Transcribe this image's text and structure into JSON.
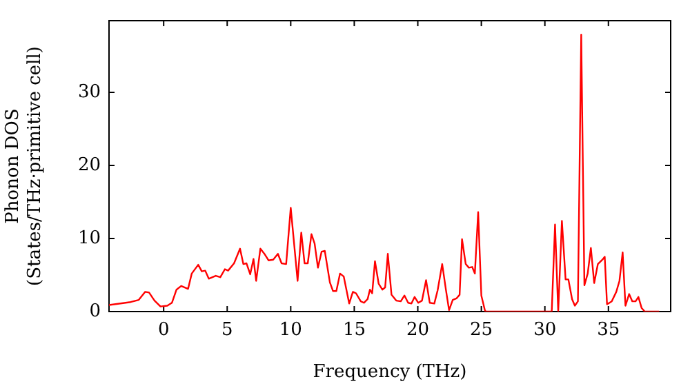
{
  "chart_data": {
    "type": "line",
    "xlabel": "Frequency (THz)",
    "ylabel": "Phonon DOS\n(States/THz·primitive cell)",
    "xlim": [
      -4.3,
      39.9
    ],
    "ylim": [
      0,
      39.8
    ],
    "xticks": [
      0,
      5,
      10,
      15,
      20,
      25,
      30,
      35
    ],
    "yticks": [
      0,
      10,
      20,
      30
    ],
    "grid": false,
    "legend": false,
    "marker": "none",
    "line_style": "solid",
    "series": [
      {
        "color": "#ff0000",
        "x": [
          -4.3,
          -2.6,
          -1.96,
          -1.45,
          -1.15,
          -0.72,
          -0.25,
          0.29,
          0.65,
          1.01,
          1.38,
          1.92,
          2.21,
          2.72,
          3.0,
          3.27,
          3.55,
          4.1,
          4.46,
          4.82,
          5.07,
          5.54,
          6.01,
          6.27,
          6.52,
          6.81,
          7.07,
          7.28,
          7.61,
          7.97,
          8.26,
          8.62,
          8.99,
          9.28,
          9.64,
          10.0,
          10.54,
          10.83,
          11.09,
          11.34,
          11.63,
          11.88,
          12.14,
          12.43,
          12.68,
          13.08,
          13.33,
          13.59,
          13.88,
          14.17,
          14.6,
          14.89,
          15.14,
          15.51,
          15.76,
          16.05,
          16.23,
          16.41,
          16.63,
          16.92,
          17.21,
          17.43,
          17.64,
          17.93,
          18.3,
          18.66,
          18.95,
          19.24,
          19.5,
          19.75,
          20.04,
          20.33,
          20.65,
          20.94,
          21.3,
          21.56,
          21.92,
          22.21,
          22.46,
          22.75,
          23.04,
          23.29,
          23.48,
          23.77,
          24.02,
          24.28,
          24.49,
          24.75,
          25.0,
          25.29,
          25.4,
          30.54,
          30.8,
          31.05,
          31.34,
          31.63,
          31.85,
          32.14,
          32.36,
          32.6,
          32.86,
          33.11,
          33.37,
          33.62,
          33.88,
          34.17,
          34.53,
          34.71,
          34.89,
          35.26,
          35.62,
          35.87,
          36.12,
          36.34,
          36.63,
          36.88,
          37.14,
          37.36,
          37.61,
          37.86,
          39.0
        ],
        "values": [
          0.9,
          1.3,
          1.6,
          2.7,
          2.6,
          1.5,
          0.7,
          0.8,
          1.2,
          3.0,
          3.5,
          3.1,
          5.2,
          6.4,
          5.5,
          5.6,
          4.5,
          4.9,
          4.7,
          5.8,
          5.6,
          6.6,
          8.6,
          6.5,
          6.6,
          5.1,
          7.2,
          4.2,
          8.6,
          7.8,
          7.0,
          7.1,
          7.9,
          6.6,
          6.5,
          14.2,
          4.2,
          10.8,
          6.6,
          6.6,
          10.6,
          9.3,
          6.0,
          8.2,
          8.3,
          4.0,
          2.8,
          2.8,
          5.2,
          4.8,
          1.1,
          2.7,
          2.5,
          1.4,
          1.2,
          1.7,
          3.0,
          2.5,
          6.9,
          3.8,
          3.0,
          3.3,
          7.9,
          2.3,
          1.5,
          1.4,
          2.2,
          1.2,
          1.1,
          2.0,
          1.2,
          1.5,
          4.3,
          1.2,
          1.1,
          2.9,
          6.5,
          3.0,
          0.2,
          1.6,
          1.8,
          2.3,
          9.9,
          6.5,
          6.0,
          6.1,
          5.2,
          13.6,
          2.2,
          0.1,
          0,
          0,
          11.9,
          0,
          12.4,
          4.4,
          4.4,
          1.7,
          0.8,
          1.4,
          37.9,
          3.6,
          5.2,
          8.7,
          3.9,
          6.5,
          7.1,
          7.5,
          1.0,
          1.4,
          2.7,
          4.2,
          8.1,
          0.8,
          2.4,
          1.4,
          1.4,
          2.0,
          0.5,
          0,
          0
        ]
      }
    ]
  }
}
